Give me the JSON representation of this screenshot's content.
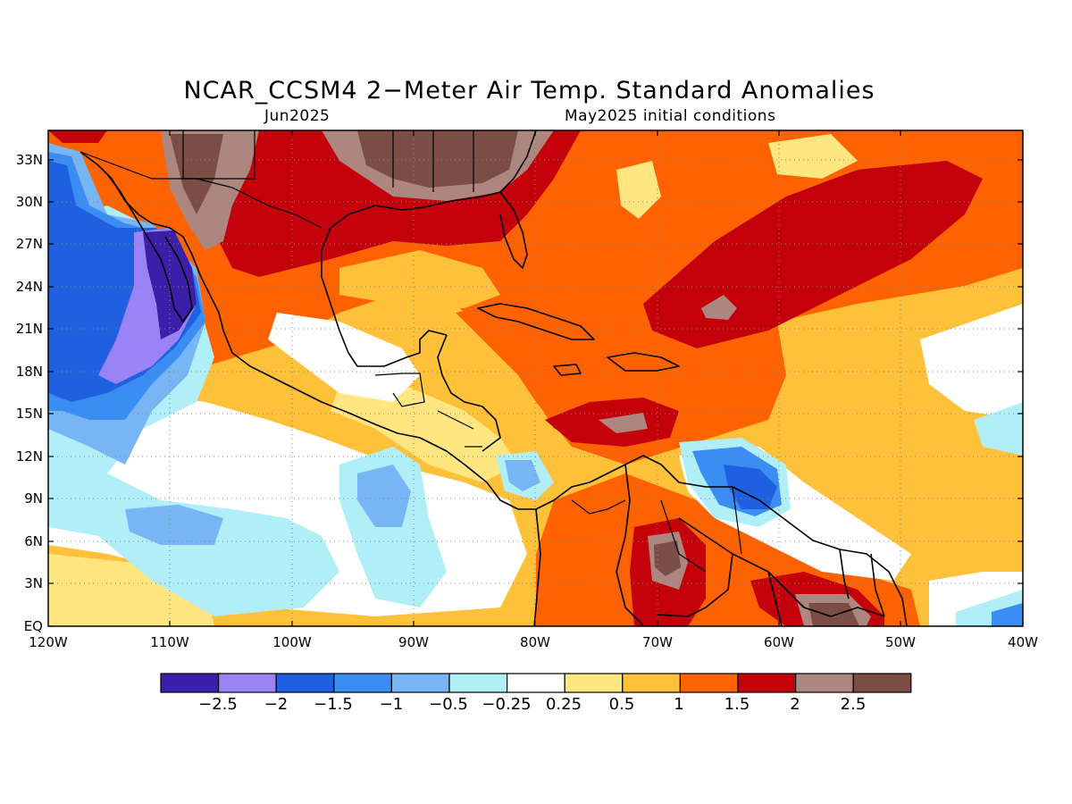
{
  "title": "NCAR_CCSM4 2−Meter Air Temp. Standard Anomalies",
  "subtitle_left": "Jun2025",
  "subtitle_right": "May2025 initial conditions",
  "lat_ticks": [
    "33N",
    "30N",
    "27N",
    "24N",
    "21N",
    "18N",
    "15N",
    "12N",
    "9N",
    "6N",
    "3N",
    "EQ"
  ],
  "lon_ticks": [
    "120W",
    "110W",
    "100W",
    "90W",
    "80W",
    "70W",
    "60W",
    "50W",
    "40W"
  ],
  "colorbar": {
    "colors": [
      "#3a1fa8",
      "#9a84f5",
      "#1e60e0",
      "#3a8df3",
      "#78b5f5",
      "#b0eef8",
      "#ffffff",
      "#ffe680",
      "#ffc03a",
      "#ff6200",
      "#c4000a",
      "#ad8680",
      "#7a4d45"
    ],
    "labels": [
      "−2.5",
      "−2",
      "−1.5",
      "−1",
      "−0.5",
      "−0.25",
      "0.25",
      "0.5",
      "1",
      "1.5",
      "2",
      "2.5"
    ]
  },
  "colors": {
    "neutral": "#ffffff",
    "warm_weak": "#ffe680",
    "warm_mid": "#ffc03a",
    "warm": "#ff6200",
    "warm_strong": "#c4000a",
    "warm_vstrong": "#ad8680",
    "warm_extreme": "#7a4d45",
    "cool_weak": "#b0eef8",
    "cool_mid": "#78b5f5",
    "cool": "#3a8df3",
    "cool_strong": "#1e60e0",
    "cool_vstrong": "#9a84f5",
    "cool_extreme": "#3a1fa8"
  }
}
